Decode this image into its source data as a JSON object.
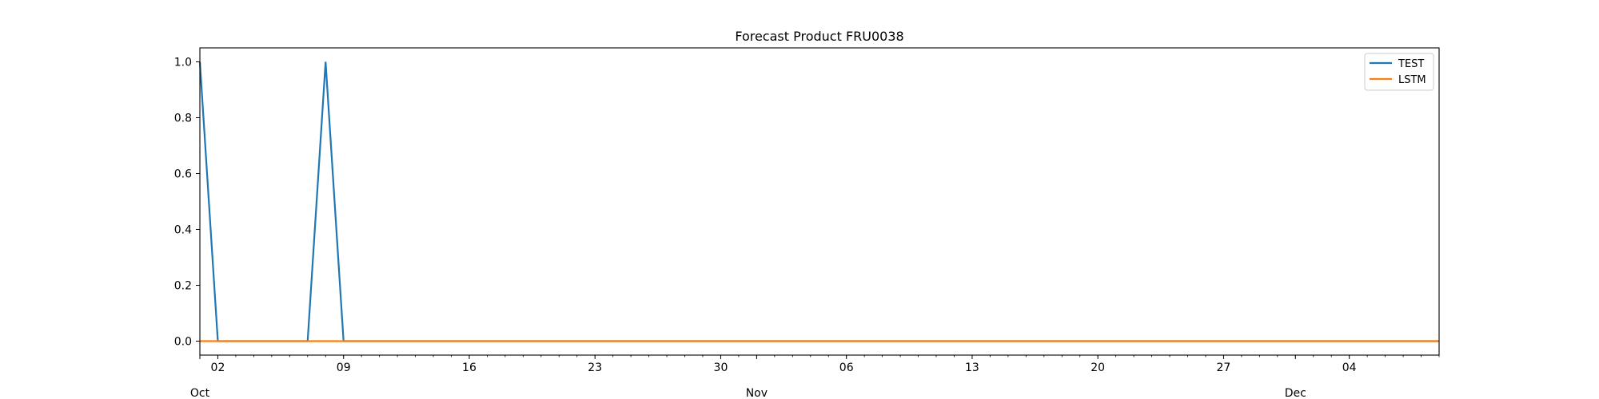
{
  "chart_data": {
    "type": "line",
    "title": "Forecast Product FRU0038",
    "xlabel": "",
    "ylabel": "",
    "x_start": "2023-10-01",
    "x_end": "2023-12-09",
    "x": [
      "2023-10-01",
      "2023-10-02",
      "2023-10-03",
      "2023-10-04",
      "2023-10-05",
      "2023-10-06",
      "2023-10-07",
      "2023-10-08",
      "2023-10-09",
      "2023-10-10",
      "2023-10-11",
      "2023-10-12",
      "2023-10-13",
      "2023-10-14",
      "2023-10-15",
      "2023-10-16",
      "2023-10-17",
      "2023-10-18",
      "2023-10-19",
      "2023-10-20",
      "2023-10-21",
      "2023-10-22",
      "2023-10-23",
      "2023-10-24",
      "2023-10-25",
      "2023-10-26",
      "2023-10-27",
      "2023-10-28",
      "2023-10-29",
      "2023-10-30",
      "2023-10-31",
      "2023-11-01",
      "2023-11-02",
      "2023-11-03",
      "2023-11-04",
      "2023-11-05",
      "2023-11-06",
      "2023-11-07",
      "2023-11-08",
      "2023-11-09",
      "2023-11-10",
      "2023-11-11",
      "2023-11-12",
      "2023-11-13",
      "2023-11-14",
      "2023-11-15",
      "2023-11-16",
      "2023-11-17",
      "2023-11-18",
      "2023-11-19",
      "2023-11-20",
      "2023-11-21",
      "2023-11-22",
      "2023-11-23",
      "2023-11-24",
      "2023-11-25",
      "2023-11-26",
      "2023-11-27",
      "2023-11-28",
      "2023-11-29",
      "2023-11-30",
      "2023-12-01",
      "2023-12-02",
      "2023-12-03",
      "2023-12-04",
      "2023-12-05",
      "2023-12-06",
      "2023-12-07",
      "2023-12-08",
      "2023-12-09"
    ],
    "series": [
      {
        "name": "TEST",
        "color": "#1f77b4",
        "values": [
          1,
          0,
          0,
          0,
          0,
          0,
          0,
          1,
          0,
          0,
          0,
          0,
          0,
          0,
          0,
          0,
          0,
          0,
          0,
          0,
          0,
          0,
          0,
          0,
          0,
          0,
          0,
          0,
          0,
          0,
          0,
          0,
          0,
          0,
          0,
          0,
          0,
          0,
          0,
          0,
          0,
          0,
          0,
          0,
          0,
          0,
          0,
          0,
          0,
          0,
          0,
          0,
          0,
          0,
          0,
          0,
          0,
          0,
          0,
          0,
          0,
          0,
          0,
          0,
          0,
          0,
          0,
          0,
          0,
          0
        ]
      },
      {
        "name": "LSTM",
        "color": "#ff7f0e",
        "values": [
          0,
          0,
          0,
          0,
          0,
          0,
          0,
          0,
          0,
          0,
          0,
          0,
          0,
          0,
          0,
          0,
          0,
          0,
          0,
          0,
          0,
          0,
          0,
          0,
          0,
          0,
          0,
          0,
          0,
          0,
          0,
          0,
          0,
          0,
          0,
          0,
          0,
          0,
          0,
          0,
          0,
          0,
          0,
          0,
          0,
          0,
          0,
          0,
          0,
          0,
          0,
          0,
          0,
          0,
          0,
          0,
          0,
          0,
          0,
          0,
          0,
          0,
          0,
          0,
          0,
          0,
          0,
          0,
          0,
          0
        ]
      }
    ],
    "ylim": [
      -0.05,
      1.05
    ],
    "yticks": [
      "0.0",
      "0.2",
      "0.4",
      "0.6",
      "0.8",
      "1.0"
    ],
    "x_major_ticks": [
      {
        "date": "2023-10-02",
        "label": "02"
      },
      {
        "date": "2023-10-09",
        "label": "09"
      },
      {
        "date": "2023-10-16",
        "label": "16"
      },
      {
        "date": "2023-10-23",
        "label": "23"
      },
      {
        "date": "2023-10-30",
        "label": "30"
      },
      {
        "date": "2023-11-06",
        "label": "06"
      },
      {
        "date": "2023-11-13",
        "label": "13"
      },
      {
        "date": "2023-11-20",
        "label": "20"
      },
      {
        "date": "2023-11-27",
        "label": "27"
      },
      {
        "date": "2023-12-04",
        "label": "04"
      }
    ],
    "month_labels": [
      {
        "date": "2023-10-01",
        "label": "Oct"
      },
      {
        "date": "2023-11-01",
        "label": "Nov"
      },
      {
        "date": "2023-12-01",
        "label": "Dec"
      }
    ],
    "grid": false,
    "legend_position": "top-right"
  }
}
